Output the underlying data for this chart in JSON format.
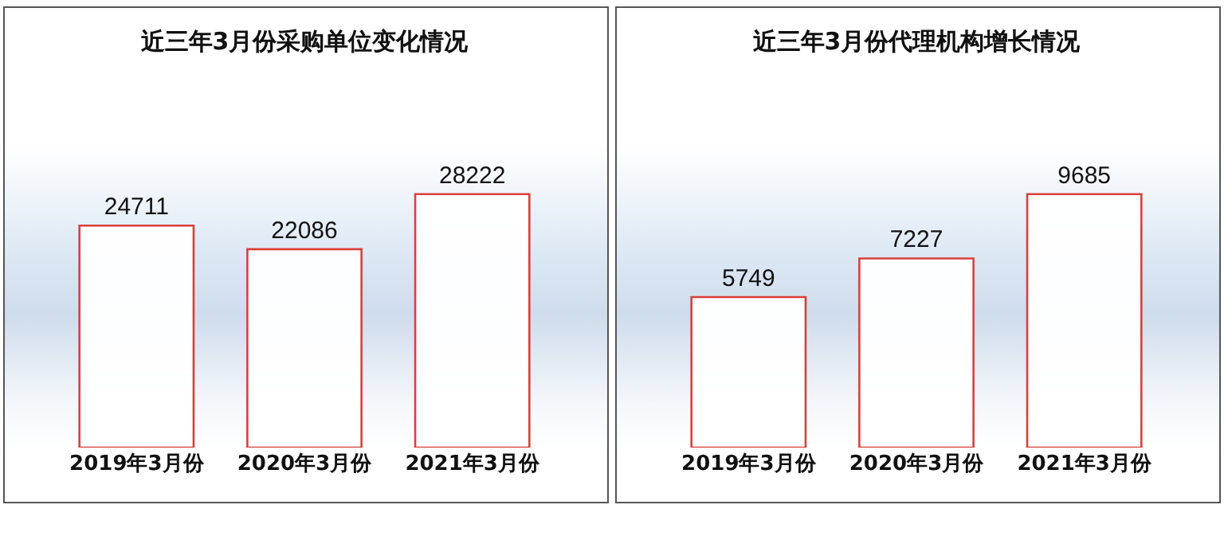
{
  "chart_data": [
    {
      "type": "bar",
      "title": "近三年3月份采购单位变化情况",
      "categories": [
        "2019年3月份",
        "2020年3月份",
        "2021年3月份"
      ],
      "series": [
        {
          "color": "#d9403a",
          "values": [
            24711,
            22086,
            28222
          ]
        }
      ],
      "data_labels": true,
      "grid": false,
      "legend": false
    },
    {
      "type": "bar",
      "title": "近三年3月份代理机构增长情况",
      "categories": [
        "2019年3月份",
        "2020年3月份",
        "2021年3月份"
      ],
      "series": [
        {
          "color": "#d9403a",
          "values": [
            5749,
            7227,
            9685
          ]
        }
      ],
      "data_labels": true,
      "grid": false,
      "legend": false
    }
  ]
}
